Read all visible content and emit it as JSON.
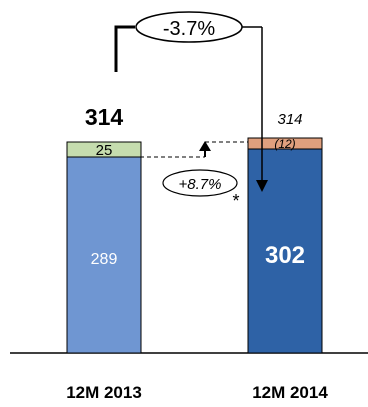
{
  "chart_data": {
    "type": "bar",
    "stacked": true,
    "categories": [
      "12M 2013",
      "12M 2014"
    ],
    "bars": [
      {
        "category": "12M 2013",
        "total_label": "314",
        "segments": [
          {
            "value": 289,
            "label": "289",
            "color": "#6f96d2"
          },
          {
            "value": 25,
            "label": "25",
            "color": "#c5dcae"
          }
        ]
      },
      {
        "category": "12M 2014",
        "total_label": "314",
        "segments": [
          {
            "value": 302,
            "label": "302",
            "color": "#2e62a6"
          },
          {
            "value": 12,
            "label": "(12)",
            "color": "#e0a07e"
          }
        ]
      }
    ],
    "annotations": {
      "change": "-3.7%",
      "increase": "+8.7%",
      "footnote_marker": "*"
    },
    "ylim": [
      0,
      340
    ],
    "grid": false,
    "legend": "none"
  }
}
